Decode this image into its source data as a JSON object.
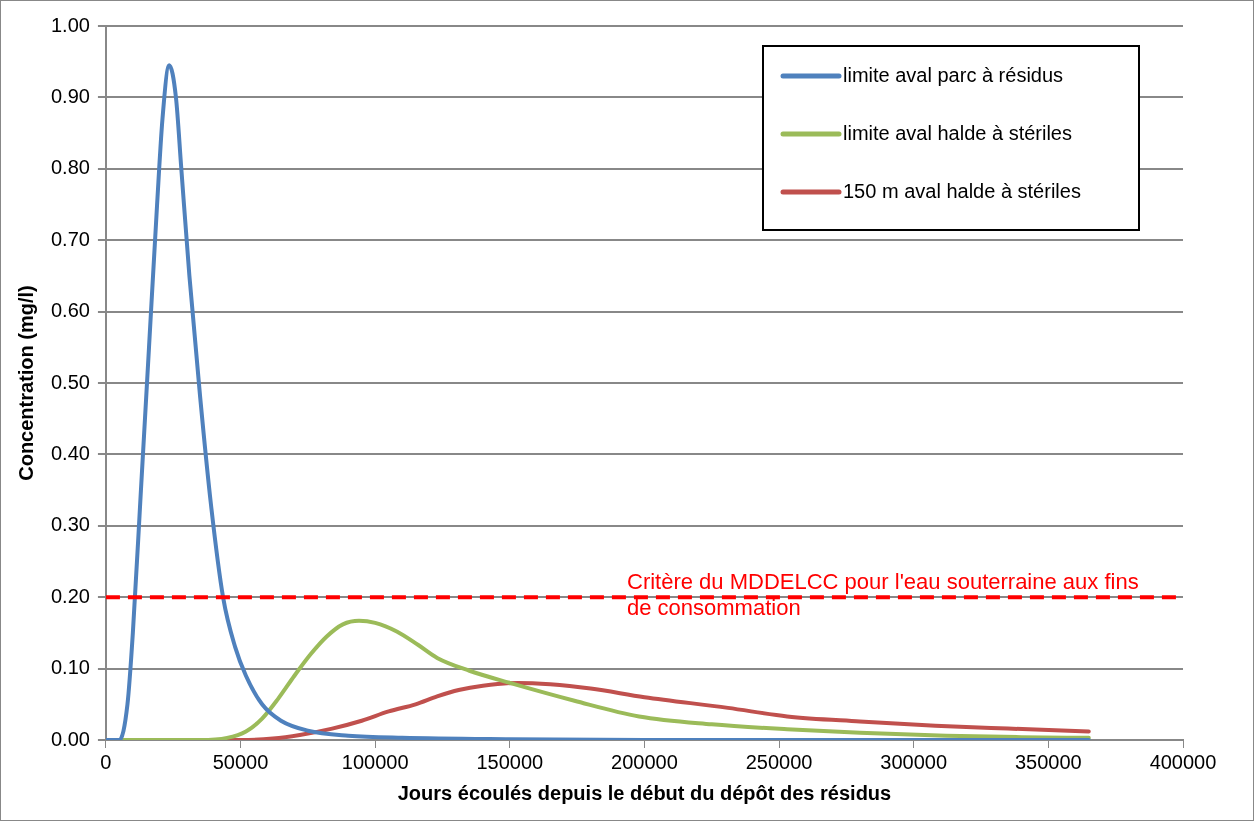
{
  "chart_data": {
    "type": "line",
    "xlabel": "Jours écoulés depuis le début du dépôt des résidus",
    "ylabel": "Concentration (mg/l)",
    "xlim": [
      0,
      400000
    ],
    "xticks": [
      0,
      50000,
      100000,
      150000,
      200000,
      250000,
      300000,
      350000,
      400000
    ],
    "ylim": [
      0,
      1
    ],
    "yticks": [
      {
        "value": 0,
        "label": "0.00"
      },
      {
        "value": 0.1,
        "label": "0.10"
      },
      {
        "value": 0.2,
        "label": "0.20"
      },
      {
        "value": 0.3,
        "label": "0.30"
      },
      {
        "value": 0.4,
        "label": "0.40"
      },
      {
        "value": 0.5,
        "label": "0.50"
      },
      {
        "value": 0.6,
        "label": "0.60"
      },
      {
        "value": 0.7,
        "label": "0.70"
      },
      {
        "value": 0.8,
        "label": "0.80"
      },
      {
        "value": 0.9,
        "label": "0.90"
      },
      {
        "value": 1,
        "label": "1.00"
      }
    ],
    "grid": "y",
    "legend": "top right",
    "marker": "none",
    "line_style": "solid",
    "series": [
      {
        "name": "limite aval parc à résidus",
        "color": "#4f81bd",
        "x": [
          0,
          5000,
          8000,
          10000,
          13000,
          16000,
          19000,
          21000,
          23500,
          26000,
          28000,
          31000,
          35000,
          39000,
          43500,
          48000,
          52000,
          58000,
          65000,
          75000,
          90000,
          110000,
          150000,
          200000,
          365000
        ],
        "values": [
          0,
          0,
          0.05,
          0.15,
          0.35,
          0.55,
          0.75,
          0.87,
          0.945,
          0.9,
          0.8,
          0.65,
          0.48,
          0.33,
          0.2,
          0.13,
          0.09,
          0.05,
          0.027,
          0.013,
          0.006,
          0.003,
          0.001,
          0,
          0
        ]
      },
      {
        "name": "limite aval halde à stériles",
        "color": "#9bbb59",
        "x": [
          0,
          35000,
          45000,
          52000,
          58000,
          64000,
          70000,
          76000,
          82000,
          88000,
          94000,
          100000,
          108000,
          116000,
          123000,
          135000,
          150000,
          174000,
          198000,
          225000,
          253000,
          280000,
          312000,
          340000,
          365000
        ],
        "values": [
          0,
          0,
          0.003,
          0.012,
          0.03,
          0.058,
          0.09,
          0.12,
          0.145,
          0.162,
          0.167,
          0.164,
          0.152,
          0.133,
          0.115,
          0.097,
          0.08,
          0.055,
          0.033,
          0.022,
          0.015,
          0.01,
          0.006,
          0.004,
          0.003
        ]
      },
      {
        "name": "150 m aval halde à stériles",
        "color": "#c0504d",
        "x": [
          0,
          50000,
          62000,
          72000,
          84000,
          95000,
          105000,
          115000,
          123000,
          131000,
          140000,
          153000,
          165000,
          180000,
          200000,
          231000,
          253000,
          280000,
          308000,
          335000,
          365000
        ],
        "values": [
          0,
          0,
          0.002,
          0.007,
          0.016,
          0.027,
          0.04,
          0.05,
          0.061,
          0.07,
          0.076,
          0.08,
          0.078,
          0.072,
          0.06,
          0.045,
          0.033,
          0.026,
          0.02,
          0.016,
          0.012
        ]
      }
    ],
    "ref_lines": [
      {
        "axis": "y",
        "value": 0.2,
        "label": "Critère du MDDELCC pour l'eau souterraine aux fins de consommation",
        "color": "#ff0000",
        "line_style": "dashed"
      }
    ]
  }
}
